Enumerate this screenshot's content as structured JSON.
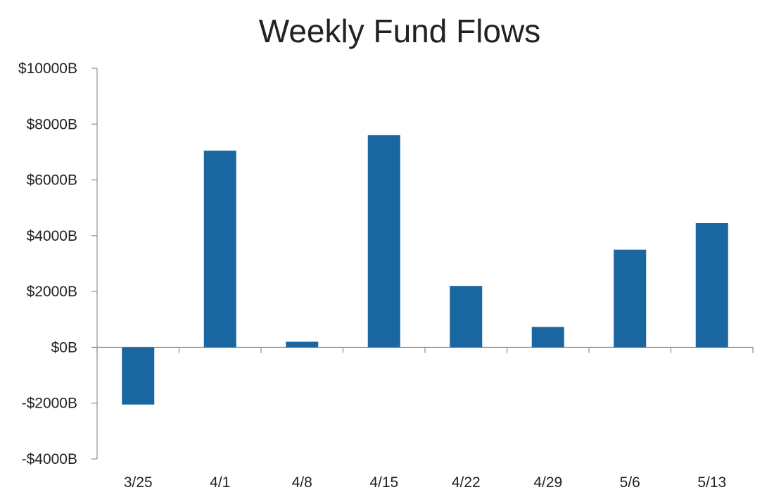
{
  "chart_data": {
    "type": "bar",
    "title": "Weekly Fund Flows",
    "xlabel": "",
    "ylabel": "",
    "categories": [
      "3/25",
      "4/1",
      "4/8",
      "4/15",
      "4/22",
      "4/29",
      "5/6",
      "5/13"
    ],
    "values": [
      -2050,
      7050,
      200,
      7600,
      2200,
      730,
      3500,
      4450
    ],
    "ylim": [
      -4000,
      10000
    ],
    "y_ticks": [
      -4000,
      -2000,
      0,
      2000,
      4000,
      6000,
      8000,
      10000
    ],
    "y_tick_labels": [
      "-$4000B",
      "-$2000B",
      "$0B",
      "$2000B",
      "$4000B",
      "$6000B",
      "$8000B",
      "$10000B"
    ],
    "grid": false,
    "legend": "none",
    "bar_color": "#1a66a0",
    "axis_color": "#8c8c8c"
  }
}
